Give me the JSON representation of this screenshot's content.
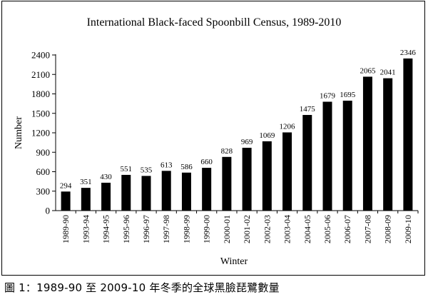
{
  "caption": "圖 1：1989-90 至 2009-10 年冬季的全球黑臉琵鷺數量",
  "chart_data": {
    "type": "bar",
    "title": "International Black-faced Spoonbill Census, 1989-2010",
    "xlabel": "Winter",
    "ylabel": "Number",
    "ylim": [
      0,
      2400
    ],
    "yticks": [
      0,
      300,
      600,
      900,
      1200,
      1500,
      1800,
      2100,
      2400
    ],
    "categories": [
      "1989-90",
      "1993-94",
      "1994-95",
      "1995-96",
      "1996-97",
      "1997-98",
      "1998-99",
      "1999-00",
      "2000-01",
      "2001-02",
      "2002-03",
      "2003-04",
      "2004-05",
      "2005-06",
      "2006-07",
      "2007-08",
      "2008-09",
      "2009-10"
    ],
    "values": [
      294,
      351,
      430,
      551,
      535,
      613,
      586,
      660,
      828,
      969,
      1069,
      1206,
      1475,
      1679,
      1695,
      2065,
      2041,
      2346
    ],
    "data_labels": [
      "294",
      "351",
      "430",
      "551",
      "535",
      "613",
      "586",
      "660",
      "828",
      "969",
      "1069",
      "1206",
      "1475",
      "1679",
      "1695",
      "2065",
      "2041",
      "2346"
    ],
    "bar_color": "#000000",
    "grid": false,
    "legend": "none"
  }
}
